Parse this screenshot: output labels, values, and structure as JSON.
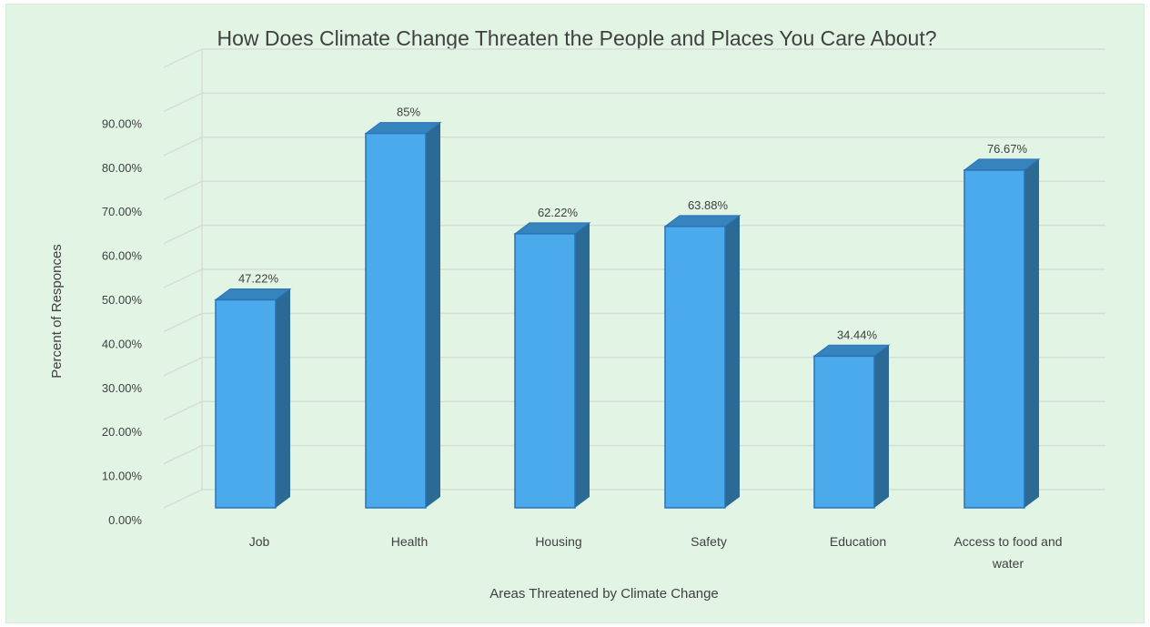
{
  "chart_data": {
    "type": "bar",
    "title": "How Does Climate Change Threaten the People and Places You Care About?",
    "xlabel": "Areas Threatened by Climate Change",
    "ylabel": "Percent of Responces",
    "categories": [
      "Job",
      "Health",
      "Housing",
      "Safety",
      "Education",
      "Access to food and water"
    ],
    "category_lines": [
      [
        "Job"
      ],
      [
        "Health"
      ],
      [
        "Housing"
      ],
      [
        "Safety"
      ],
      [
        "Education"
      ],
      [
        "Access to food and",
        "water"
      ]
    ],
    "values": [
      47.22,
      85,
      62.22,
      63.88,
      34.44,
      76.67
    ],
    "data_labels": [
      "47.22%",
      "85%",
      "62.22%",
      "63.88%",
      "34.44%",
      "76.67%"
    ],
    "yticks": [
      0,
      10,
      20,
      30,
      40,
      50,
      60,
      70,
      80,
      90
    ],
    "ytick_labels": [
      "0.00%",
      "10.00%",
      "20.00%",
      "30.00%",
      "40.00%",
      "50.00%",
      "60.00%",
      "70.00%",
      "80.00%",
      "90.00%"
    ],
    "ylim": [
      0,
      100
    ],
    "grid": true,
    "style": "3d-column",
    "colors": {
      "bar_front": "#4aaaec",
      "bar_side": "#2a6a95",
      "bar_top": "#3584bd",
      "bar_edge": "#2b73b6",
      "grid": "#d6ddd7",
      "background": "#e2f5e4"
    }
  }
}
